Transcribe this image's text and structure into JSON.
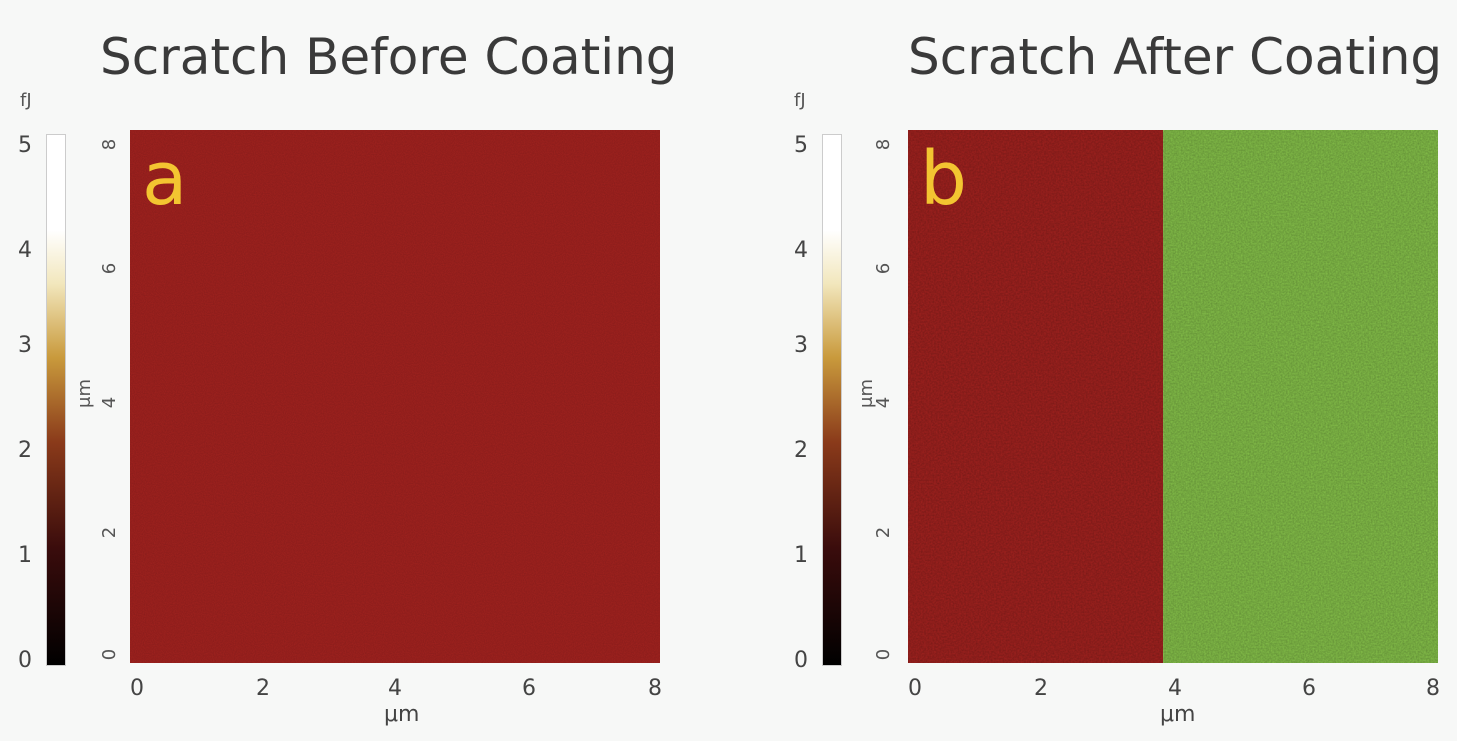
{
  "chart_data": [
    {
      "type": "heatmap",
      "panel_label": "a",
      "title": "Scratch Before Coating",
      "colorbar": {
        "unit": "fJ",
        "ticks": [
          "0",
          "1",
          "2",
          "3",
          "4",
          "5"
        ],
        "range": [
          0,
          5.2
        ]
      },
      "x_ticks": [
        "0",
        "2",
        "4",
        "6",
        "8"
      ],
      "y_ticks": [
        "0",
        "2",
        "4",
        "6",
        "8"
      ],
      "xlabel": "μm",
      "ylabel": "μm",
      "xlim": [
        0,
        8
      ],
      "ylim": [
        0,
        8
      ],
      "regions": [
        {
          "x_range": [
            0,
            8
          ],
          "color": "#a3221f"
        }
      ]
    },
    {
      "type": "heatmap",
      "panel_label": "b",
      "title": "Scratch After Coating",
      "colorbar": {
        "unit": "fJ",
        "ticks": [
          "0",
          "1",
          "2",
          "3",
          "4",
          "5"
        ],
        "range": [
          0,
          5.2
        ]
      },
      "x_ticks": [
        "0",
        "2",
        "4",
        "6",
        "8"
      ],
      "y_ticks": [
        "0",
        "2",
        "4",
        "6",
        "8"
      ],
      "xlabel": "μm",
      "ylabel": "μm",
      "xlim": [
        0,
        8
      ],
      "ylim": [
        0,
        8
      ],
      "regions": [
        {
          "x_range": [
            0,
            3.85
          ],
          "color": "#a3221f"
        },
        {
          "x_range": [
            3.85,
            8
          ],
          "color": "#86c24a"
        }
      ]
    }
  ]
}
